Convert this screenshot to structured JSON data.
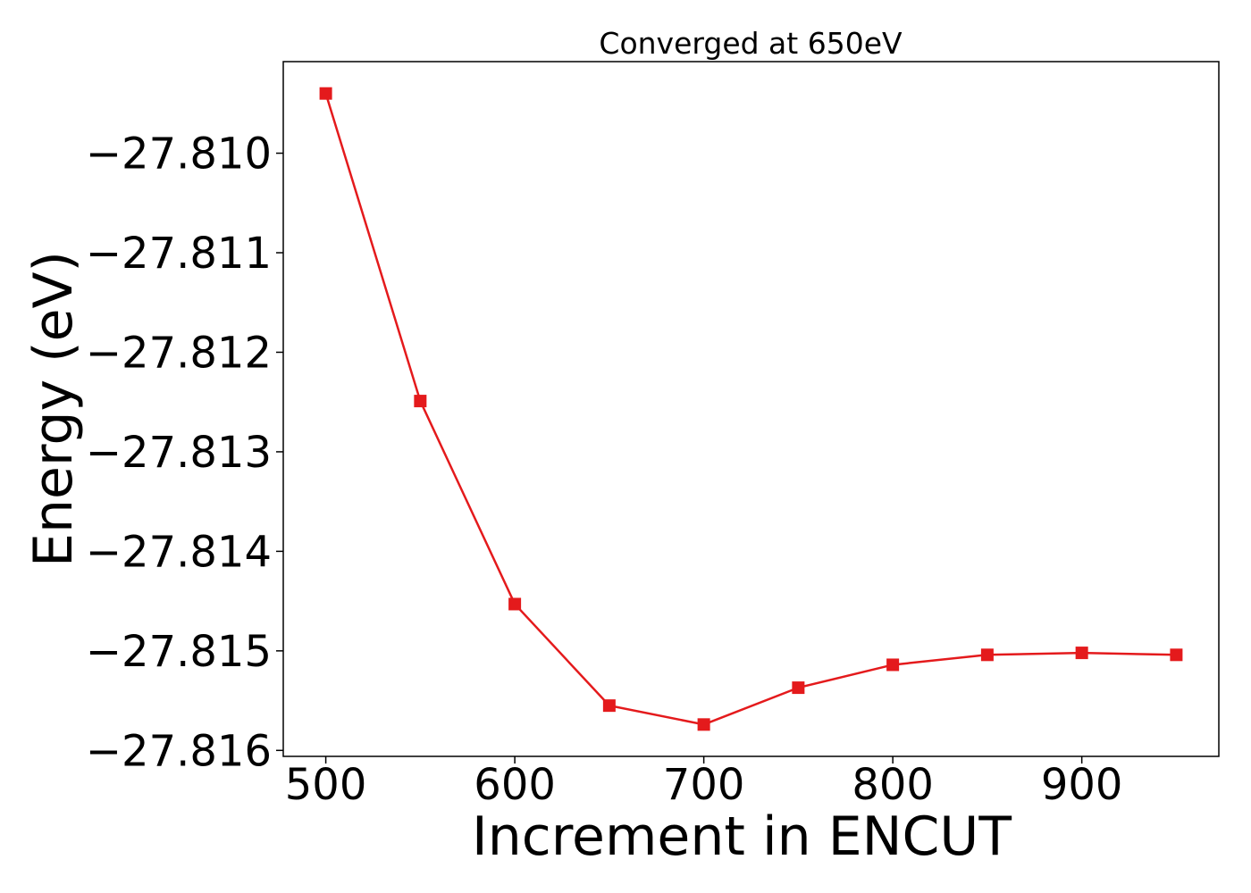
{
  "chart_data": {
    "type": "line",
    "title": "Converged at 650eV",
    "xlabel": "Increment in ENCUT",
    "ylabel": "Energy (eV)",
    "xlim": [
      477.5,
      972.5
    ],
    "ylim": [
      -27.81606,
      -27.80908
    ],
    "xticks": [
      500,
      600,
      700,
      800,
      900
    ],
    "xtick_labels": [
      "500",
      "600",
      "700",
      "800",
      "900"
    ],
    "yticks": [
      -27.81,
      -27.811,
      -27.812,
      -27.813,
      -27.814,
      -27.815,
      -27.816
    ],
    "ytick_labels": [
      "−27.810",
      "−27.811",
      "−27.812",
      "−27.813",
      "−27.814",
      "−27.815",
      "−27.816"
    ],
    "grid": false,
    "series": [
      {
        "color": "#e41a1c",
        "marker": "square",
        "x": [
          500,
          550,
          600,
          650,
          700,
          750,
          800,
          850,
          900,
          950
        ],
        "y": [
          -27.8094,
          -27.81249,
          -27.81453,
          -27.81555,
          -27.81574,
          -27.81537,
          -27.81514,
          -27.81504,
          -27.81502,
          -27.81504
        ]
      }
    ]
  }
}
